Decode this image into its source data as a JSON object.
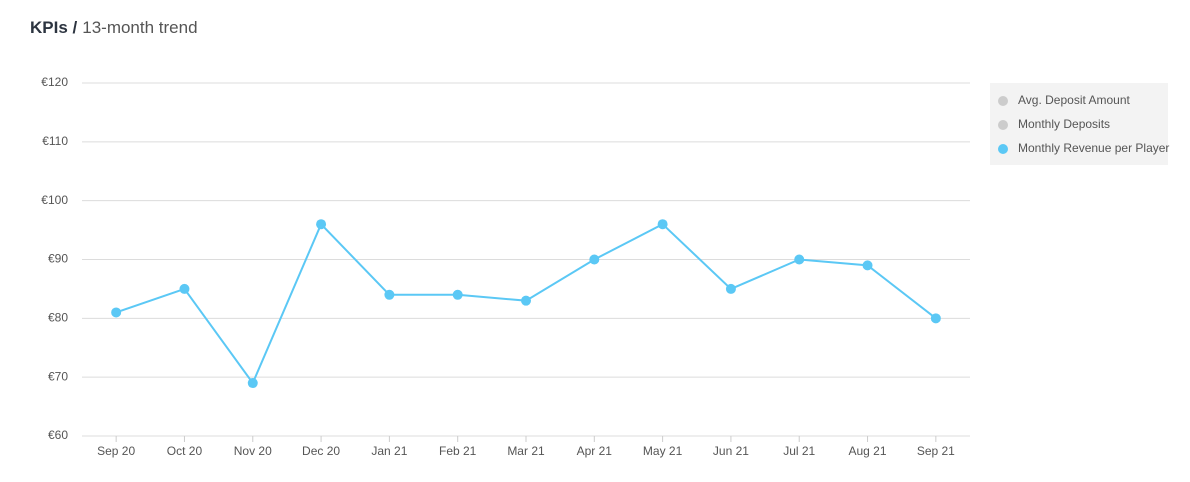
{
  "chart_data": {
    "type": "line",
    "title": "KPIs /",
    "subtitle": "13-month trend",
    "categories": [
      "Sep 20",
      "Oct 20",
      "Nov 20",
      "Dec 20",
      "Jan 21",
      "Feb 21",
      "Mar 21",
      "Apr 21",
      "May 21",
      "Jun 21",
      "Jul 21",
      "Aug 21",
      "Sep 21"
    ],
    "series": [
      {
        "name": "Avg. Deposit Amount",
        "color": "#cccccc",
        "visible": false
      },
      {
        "name": "Monthly Deposits",
        "color": "#cccccc",
        "visible": false
      },
      {
        "name": "Monthly Revenue per Player",
        "color": "#5bc8f5",
        "visible": true,
        "values": [
          81,
          85,
          69,
          96,
          84,
          84,
          83,
          90,
          96,
          85,
          90,
          89,
          80
        ]
      }
    ],
    "ylim": [
      60,
      120
    ],
    "yticks": [
      {
        "value": 60,
        "label": "€60"
      },
      {
        "value": 70,
        "label": "€70"
      },
      {
        "value": 80,
        "label": "€80"
      },
      {
        "value": 90,
        "label": "€90"
      },
      {
        "value": 100,
        "label": "€100"
      },
      {
        "value": 110,
        "label": "€110"
      },
      {
        "value": 120,
        "label": "€120"
      }
    ],
    "grid": true,
    "legend": "right"
  }
}
